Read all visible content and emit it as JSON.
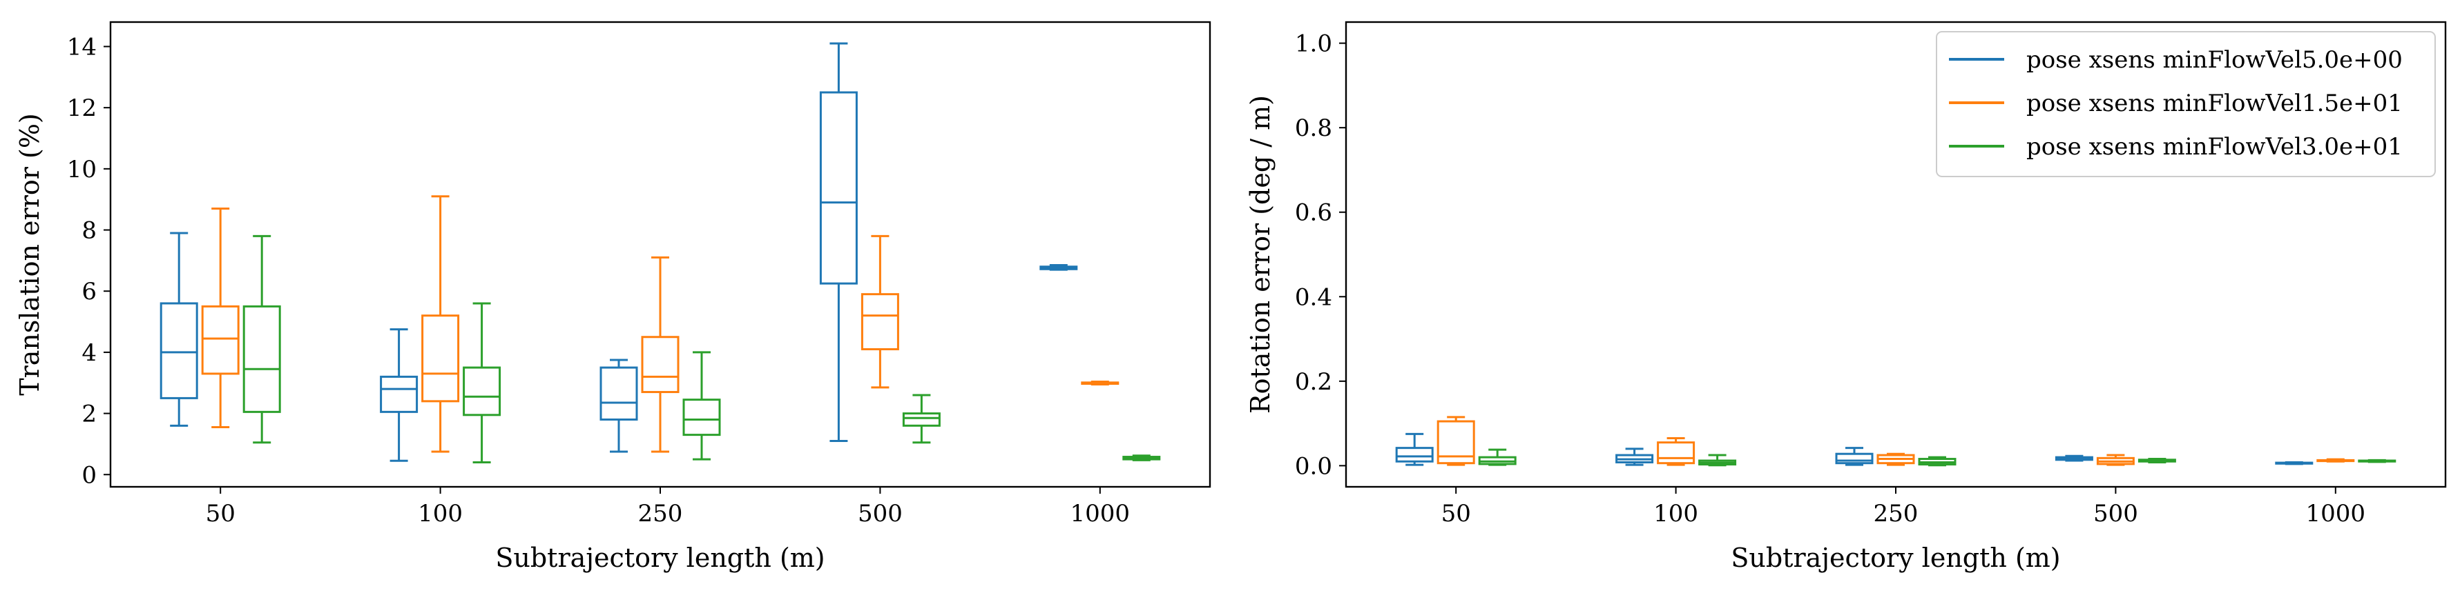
{
  "colors": {
    "series": [
      "#1f77b4",
      "#ff7f0e",
      "#2ca02c"
    ],
    "axes": "#000000",
    "background": "#ffffff"
  },
  "chart_data": [
    {
      "type": "boxplot",
      "title": "",
      "xlabel": "Subtrajectory length (m)",
      "ylabel": "Translation error (%)",
      "categories": [
        "50",
        "100",
        "250",
        "500",
        "1000"
      ],
      "yticks": [
        0,
        2,
        4,
        6,
        8,
        10,
        12,
        14
      ],
      "ylim": [
        -0.4,
        14.8
      ],
      "grid": false,
      "legend": "none",
      "series": [
        {
          "color_index": 0,
          "boxes": [
            {
              "whislo": 1.6,
              "q1": 2.5,
              "med": 4.0,
              "q3": 5.6,
              "whishi": 7.9
            },
            {
              "whislo": 0.45,
              "q1": 2.05,
              "med": 2.8,
              "q3": 3.2,
              "whishi": 4.75
            },
            {
              "whislo": 0.75,
              "q1": 1.8,
              "med": 2.35,
              "q3": 3.5,
              "whishi": 3.75
            },
            {
              "whislo": 1.1,
              "q1": 6.25,
              "med": 8.9,
              "q3": 12.5,
              "whishi": 14.1
            },
            {
              "whislo": 6.7,
              "q1": 6.72,
              "med": 6.76,
              "q3": 6.8,
              "whishi": 6.85
            }
          ]
        },
        {
          "color_index": 1,
          "boxes": [
            {
              "whislo": 1.55,
              "q1": 3.3,
              "med": 4.45,
              "q3": 5.5,
              "whishi": 8.7
            },
            {
              "whislo": 0.75,
              "q1": 2.4,
              "med": 3.3,
              "q3": 5.2,
              "whishi": 9.1
            },
            {
              "whislo": 0.75,
              "q1": 2.7,
              "med": 3.2,
              "q3": 4.5,
              "whishi": 7.1
            },
            {
              "whislo": 2.85,
              "q1": 4.1,
              "med": 5.2,
              "q3": 5.9,
              "whishi": 7.8
            },
            {
              "whislo": 2.95,
              "q1": 2.97,
              "med": 2.99,
              "q3": 3.01,
              "whishi": 3.04
            }
          ]
        },
        {
          "color_index": 2,
          "boxes": [
            {
              "whislo": 1.05,
              "q1": 2.05,
              "med": 3.45,
              "q3": 5.5,
              "whishi": 7.8
            },
            {
              "whislo": 0.4,
              "q1": 1.95,
              "med": 2.55,
              "q3": 3.5,
              "whishi": 5.6
            },
            {
              "whislo": 0.5,
              "q1": 1.3,
              "med": 1.8,
              "q3": 2.45,
              "whishi": 4.0
            },
            {
              "whislo": 1.05,
              "q1": 1.6,
              "med": 1.85,
              "q3": 2.0,
              "whishi": 2.6
            },
            {
              "whislo": 0.47,
              "q1": 0.5,
              "med": 0.54,
              "q3": 0.58,
              "whishi": 0.62
            }
          ]
        }
      ]
    },
    {
      "type": "boxplot",
      "title": "",
      "xlabel": "Subtrajectory length (m)",
      "ylabel": "Rotation error (deg / m)",
      "categories": [
        "50",
        "100",
        "250",
        "500",
        "1000"
      ],
      "yticks": [
        0.0,
        0.2,
        0.4,
        0.6,
        0.8,
        1.0
      ],
      "ytick_labels": [
        "0.0",
        "0.2",
        "0.4",
        "0.6",
        "0.8",
        "1.0"
      ],
      "ylim": [
        -0.05,
        1.05
      ],
      "grid": false,
      "legend": "top-right",
      "series": [
        {
          "name": "pose xsens minFlowVel5.0e+00",
          "color_index": 0,
          "boxes": [
            {
              "whislo": 0.002,
              "q1": 0.01,
              "med": 0.022,
              "q3": 0.042,
              "whishi": 0.075
            },
            {
              "whislo": 0.002,
              "q1": 0.008,
              "med": 0.015,
              "q3": 0.025,
              "whishi": 0.04
            },
            {
              "whislo": 0.002,
              "q1": 0.006,
              "med": 0.012,
              "q3": 0.028,
              "whishi": 0.042
            },
            {
              "whislo": 0.012,
              "q1": 0.014,
              "med": 0.017,
              "q3": 0.02,
              "whishi": 0.023
            },
            {
              "whislo": 0.004,
              "q1": 0.005,
              "med": 0.006,
              "q3": 0.007,
              "whishi": 0.008
            }
          ]
        },
        {
          "name": "pose xsens minFlowVel1.5e+01",
          "color_index": 1,
          "boxes": [
            {
              "whislo": 0.002,
              "q1": 0.006,
              "med": 0.022,
              "q3": 0.105,
              "whishi": 0.115
            },
            {
              "whislo": 0.002,
              "q1": 0.006,
              "med": 0.018,
              "q3": 0.055,
              "whishi": 0.065
            },
            {
              "whislo": 0.002,
              "q1": 0.006,
              "med": 0.016,
              "q3": 0.025,
              "whishi": 0.028
            },
            {
              "whislo": 0.002,
              "q1": 0.004,
              "med": 0.01,
              "q3": 0.018,
              "whishi": 0.025
            },
            {
              "whislo": 0.01,
              "q1": 0.011,
              "med": 0.012,
              "q3": 0.013,
              "whishi": 0.015
            }
          ]
        },
        {
          "name": "pose xsens minFlowVel3.0e+01",
          "color_index": 2,
          "boxes": [
            {
              "whislo": 0.002,
              "q1": 0.004,
              "med": 0.01,
              "q3": 0.02,
              "whishi": 0.038
            },
            {
              "whislo": 0.001,
              "q1": 0.003,
              "med": 0.007,
              "q3": 0.012,
              "whishi": 0.025
            },
            {
              "whislo": 0.001,
              "q1": 0.003,
              "med": 0.008,
              "q3": 0.016,
              "whishi": 0.02
            },
            {
              "whislo": 0.008,
              "q1": 0.01,
              "med": 0.012,
              "q3": 0.014,
              "whishi": 0.016
            },
            {
              "whislo": 0.009,
              "q1": 0.01,
              "med": 0.011,
              "q3": 0.012,
              "whishi": 0.013
            }
          ]
        }
      ]
    }
  ]
}
